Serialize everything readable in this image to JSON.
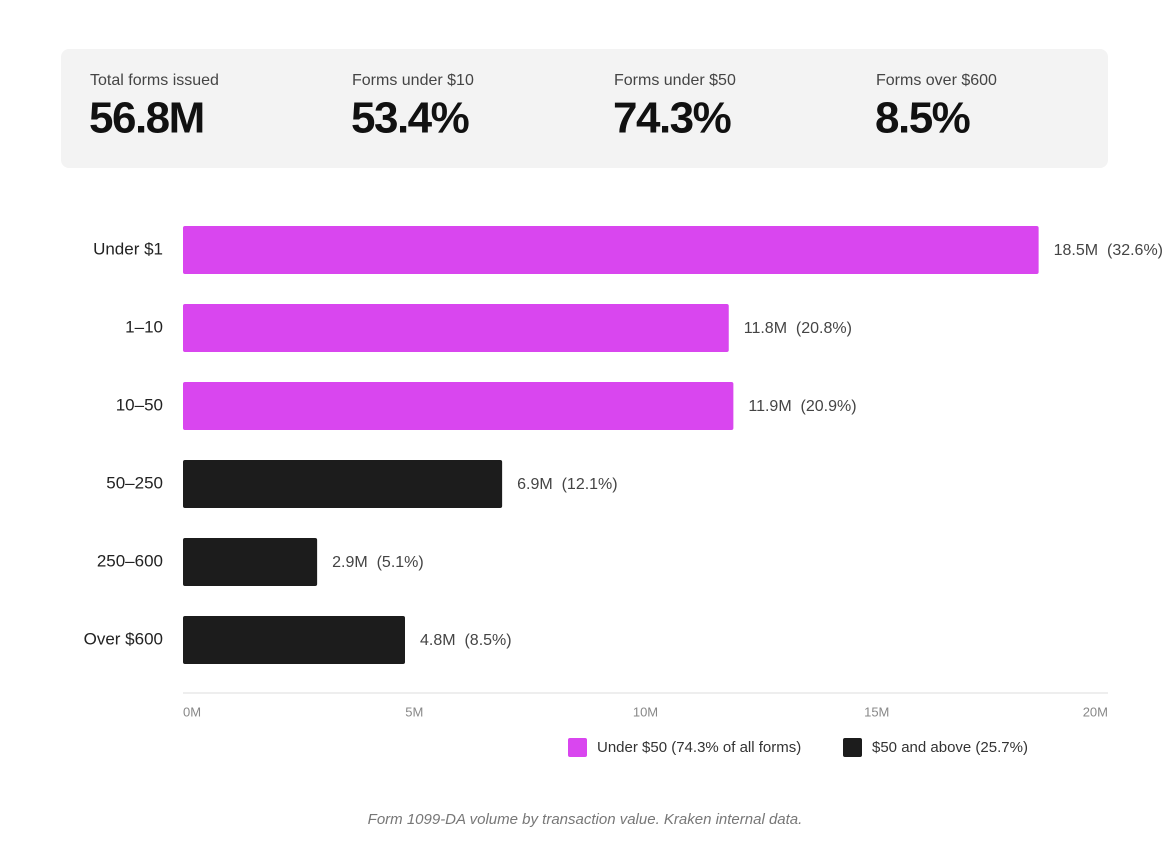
{
  "stats": [
    {
      "label": "Total forms issued",
      "value": "56.8M"
    },
    {
      "label": "Forms under $10",
      "value": "53.4%"
    },
    {
      "label": "Forms under $50",
      "value": "74.3%"
    },
    {
      "label": "Forms over $600",
      "value": "8.5%"
    }
  ],
  "chart_data": {
    "type": "hbar",
    "categories": [
      "Under $1",
      "1–10",
      "10–50",
      "50–250",
      "250–600",
      "Over $600"
    ],
    "series": [
      {
        "name": "Under $50 (74.3% of all forms)",
        "color": "#d946ef",
        "values": [
          18.5,
          11.8,
          11.9,
          null,
          null,
          null
        ],
        "value_labels": [
          "18.5M  (32.6%)",
          "11.8M  (20.8%)",
          "11.9M  (20.9%)",
          null,
          null,
          null
        ]
      },
      {
        "name": "$50 and above (25.7%)",
        "color": "#1c1c1c",
        "values": [
          null,
          null,
          null,
          6.9,
          2.9,
          4.8
        ],
        "value_labels": [
          null,
          null,
          null,
          "6.9M  (12.1%)",
          "2.9M  (5.1%)",
          "4.8M  (8.5%)"
        ]
      }
    ],
    "xlim": [
      0,
      20
    ],
    "xticks": [
      {
        "value": 0,
        "label": "0M"
      },
      {
        "value": 5,
        "label": "5M"
      },
      {
        "value": 10,
        "label": "10M"
      },
      {
        "value": 15,
        "label": "15M"
      },
      {
        "value": 20,
        "label": "20M"
      }
    ],
    "caption": "Form 1099-DA volume by transaction value. Kraken internal data."
  }
}
